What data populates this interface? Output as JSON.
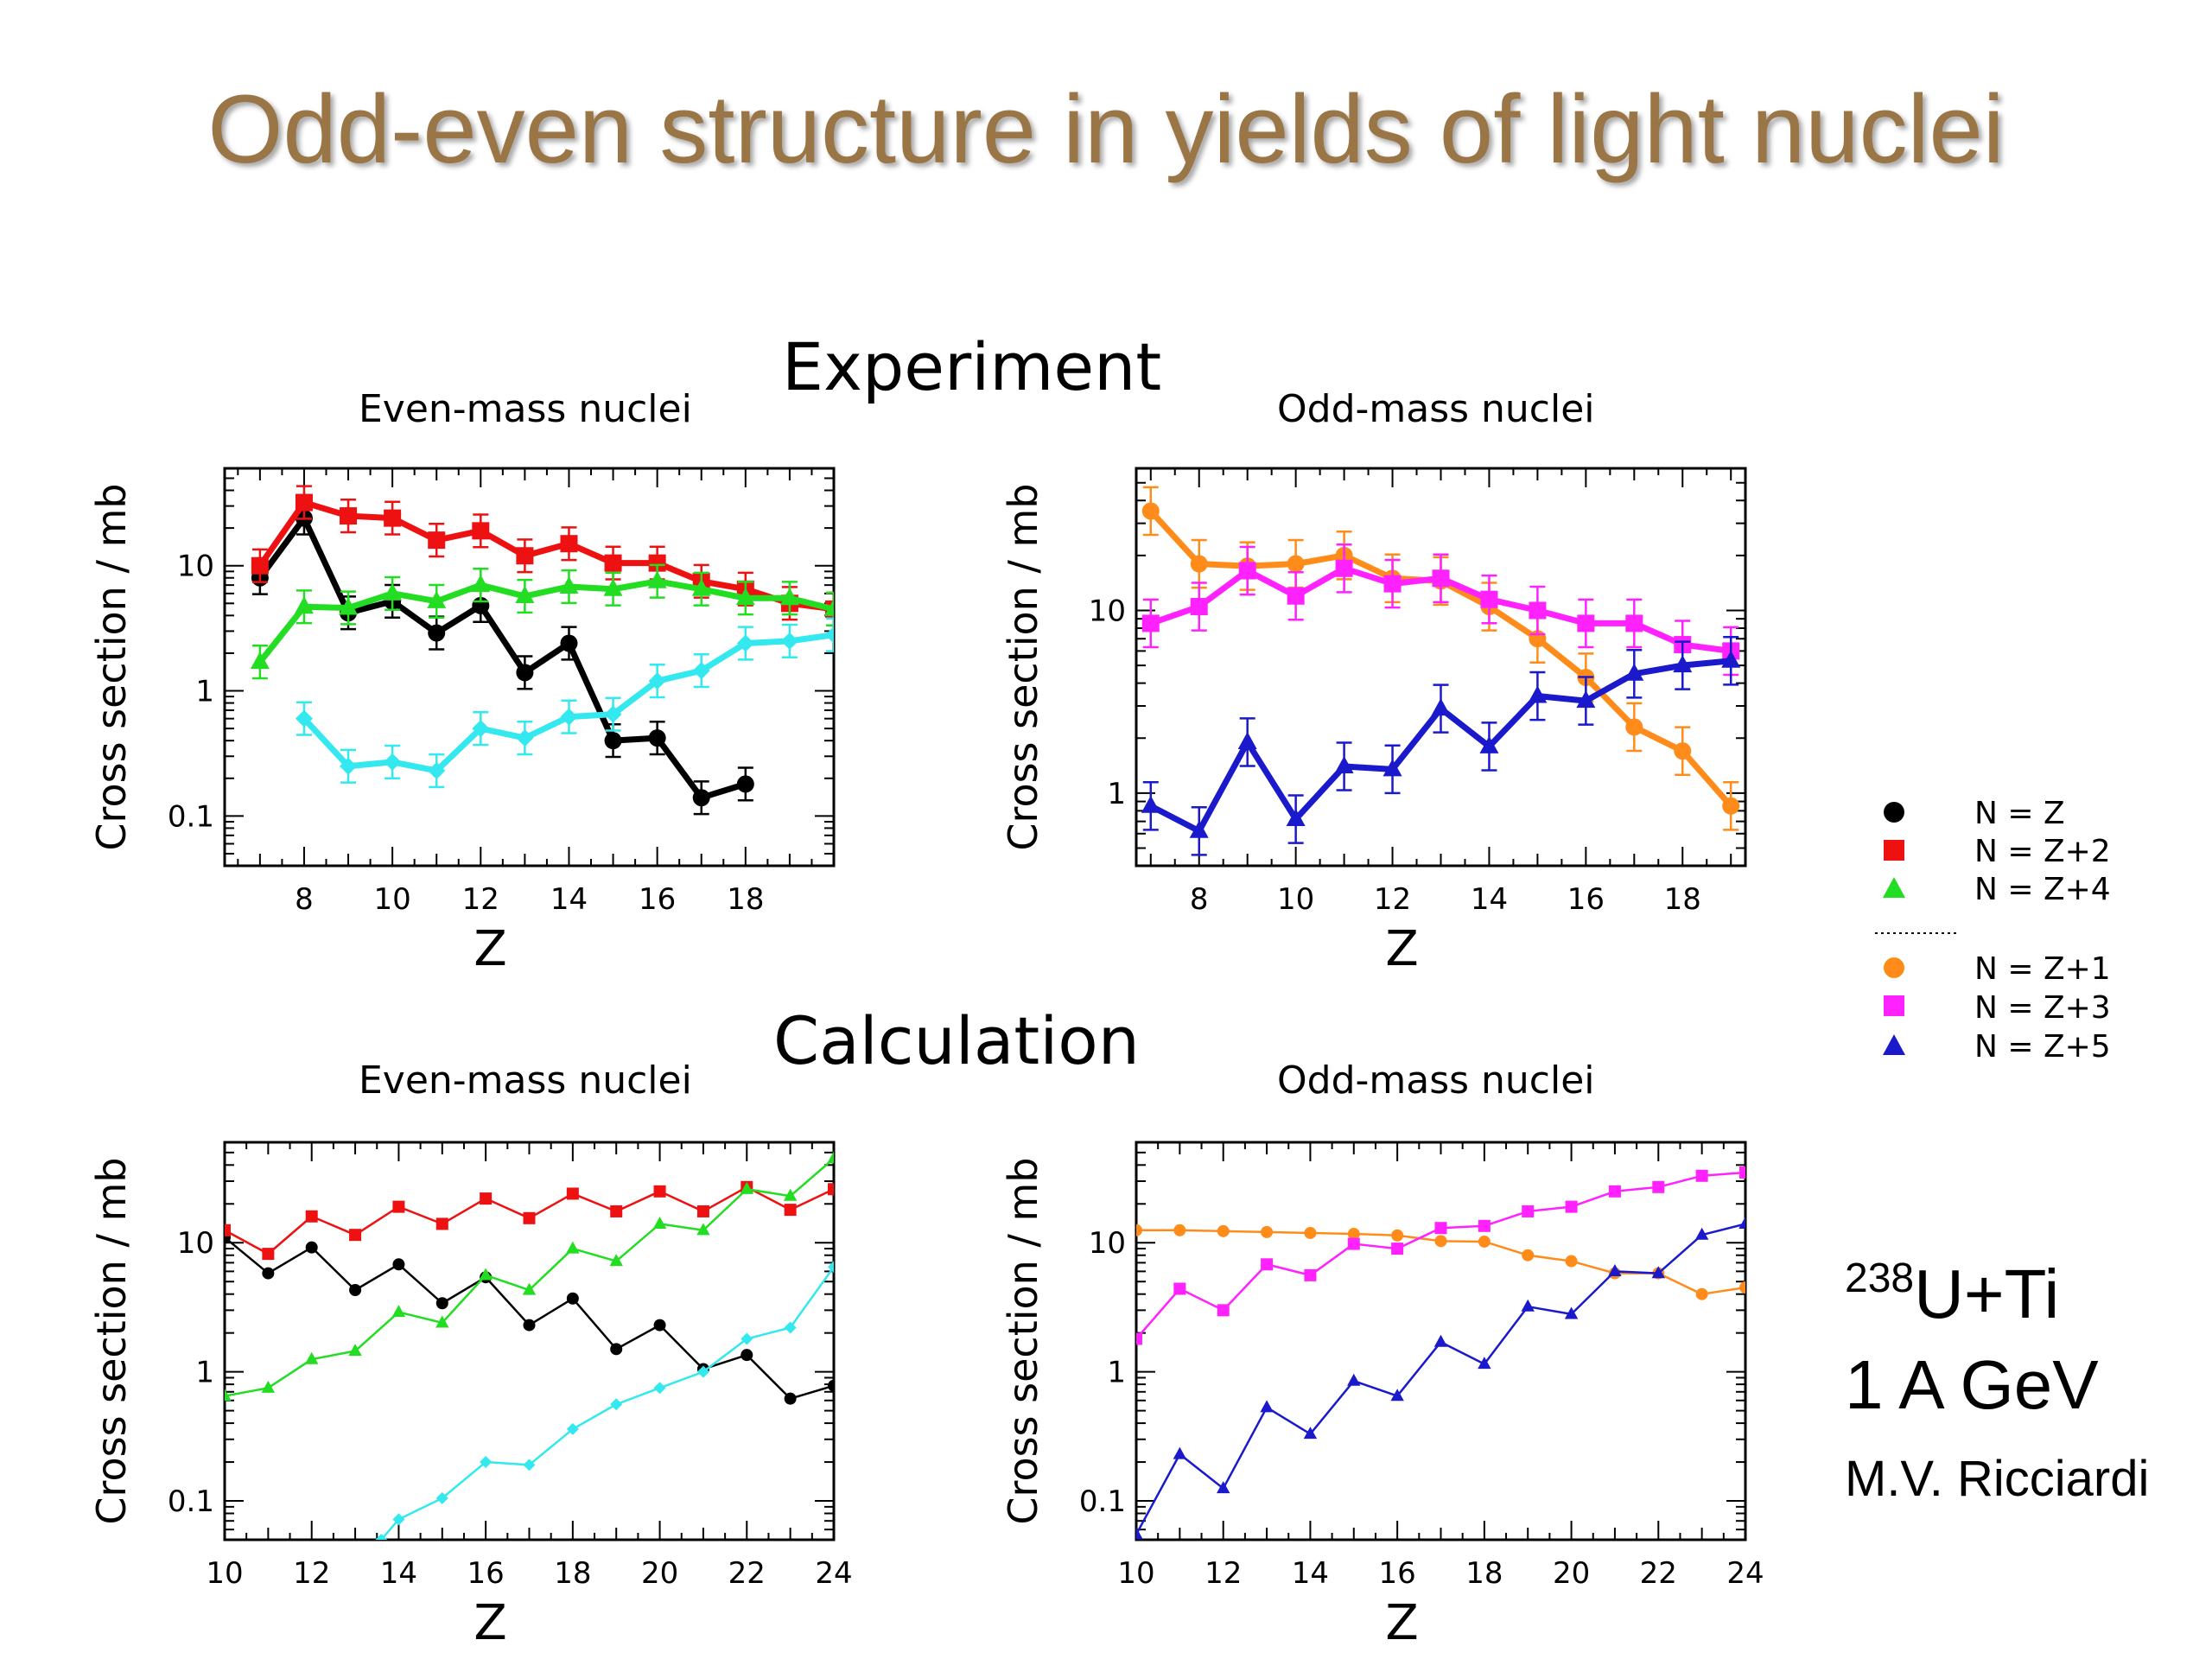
{
  "slide": {
    "title": "Odd-even structure in yields of light nuclei",
    "experiment_label": "Experiment",
    "calculation_label": "Calculation",
    "reaction_mass": "238",
    "reaction_rest": "U+Ti",
    "energy": "1 A GeV",
    "author": "M.V. Ricciardi"
  },
  "legend": {
    "items": [
      {
        "label": "N = Z",
        "color": "#000000",
        "marker": "circle"
      },
      {
        "label": "N = Z+2",
        "color": "#ee1111",
        "marker": "square"
      },
      {
        "label": "N = Z+4",
        "color": "#22dd22",
        "marker": "triangle"
      },
      {
        "label": "N = Z+1",
        "color": "#ff8c1a",
        "marker": "circle"
      },
      {
        "label": "N = Z+3",
        "color": "#ff22ff",
        "marker": "square"
      },
      {
        "label": "N = Z+5",
        "color": "#1a1acc",
        "marker": "triangle"
      }
    ]
  },
  "chart_data": [
    {
      "type": "line",
      "id": "exp-even",
      "title": "Even-mass nuclei",
      "xlabel": "Z",
      "ylabel": "Cross section / mb",
      "xlim": [
        6.2,
        20
      ],
      "ylim": [
        0.04,
        60
      ],
      "yscale": "log",
      "xticks": [
        8,
        10,
        12,
        14,
        16,
        18
      ],
      "yticks": [
        0.1,
        1,
        10
      ],
      "ytick_labels": [
        "0.1",
        "1",
        "10"
      ],
      "error_bars": true,
      "line_width": 7,
      "marker_size": 10,
      "series": [
        {
          "legend": "N = Z",
          "color": "#000000",
          "marker": "circle",
          "x": [
            7,
            8,
            9,
            10,
            11,
            12,
            13,
            14,
            15,
            16,
            17,
            18
          ],
          "y": [
            8,
            24,
            4.2,
            5.2,
            2.9,
            4.8,
            1.4,
            2.4,
            0.4,
            0.42,
            0.14,
            0.18
          ]
        },
        {
          "legend": "N = Z+2",
          "color": "#ee1111",
          "marker": "square",
          "x": [
            7,
            8,
            9,
            10,
            11,
            12,
            13,
            14,
            15,
            16,
            17,
            18,
            19,
            20
          ],
          "y": [
            10,
            32,
            25,
            24,
            16,
            19,
            12,
            15,
            10.5,
            10.5,
            7.5,
            6.5,
            5,
            4.5
          ]
        },
        {
          "legend": "N = Z+4",
          "color": "#22dd22",
          "marker": "triangle",
          "x": [
            7,
            8,
            9,
            10,
            11,
            12,
            13,
            14,
            15,
            16,
            17,
            18,
            19,
            20
          ],
          "y": [
            1.7,
            4.7,
            4.6,
            6,
            5.2,
            7,
            5.7,
            6.8,
            6.5,
            7.5,
            6.5,
            5.5,
            5.5,
            4.5
          ]
        },
        {
          "color": "#33e8ee",
          "marker": "diamond",
          "x": [
            8,
            9,
            10,
            11,
            12,
            13,
            14,
            15,
            16,
            17,
            18,
            19,
            20
          ],
          "y": [
            0.6,
            0.25,
            0.27,
            0.23,
            0.5,
            0.42,
            0.62,
            0.65,
            1.2,
            1.45,
            2.4,
            2.5,
            2.8
          ]
        }
      ]
    },
    {
      "type": "line",
      "id": "exp-odd",
      "title": "Odd-mass nuclei",
      "xlabel": "Z",
      "ylabel": "Cross section / mb",
      "xlim": [
        6.7,
        19.3
      ],
      "ylim": [
        0.4,
        60
      ],
      "yscale": "log",
      "xticks": [
        8,
        10,
        12,
        14,
        16,
        18
      ],
      "yticks": [
        1,
        10
      ],
      "ytick_labels": [
        "1",
        "10"
      ],
      "error_bars": true,
      "line_width": 7,
      "marker_size": 10,
      "series": [
        {
          "legend": "N = Z+1",
          "color": "#ff8c1a",
          "marker": "circle",
          "x": [
            7,
            8,
            9,
            10,
            11,
            12,
            13,
            14,
            15,
            16,
            17,
            18,
            19
          ],
          "y": [
            35,
            18,
            17.5,
            18,
            20,
            15,
            14.5,
            10.5,
            7,
            4.3,
            2.3,
            1.7,
            0.85
          ]
        },
        {
          "legend": "N = Z+3",
          "color": "#ff22ff",
          "marker": "square",
          "x": [
            7,
            8,
            9,
            10,
            11,
            12,
            13,
            14,
            15,
            16,
            17,
            18,
            19
          ],
          "y": [
            8.5,
            10.5,
            16.5,
            12,
            17,
            14,
            15,
            11.5,
            10,
            8.5,
            8.5,
            6.5,
            6
          ]
        },
        {
          "legend": "N = Z+5",
          "color": "#1a1acc",
          "marker": "triangle",
          "x": [
            7,
            8,
            9,
            10,
            11,
            12,
            13,
            14,
            15,
            16,
            17,
            18,
            19
          ],
          "y": [
            0.85,
            0.62,
            1.9,
            0.72,
            1.4,
            1.35,
            2.9,
            1.8,
            3.4,
            3.2,
            4.5,
            5,
            5.3
          ]
        }
      ]
    },
    {
      "type": "line",
      "id": "calc-even",
      "title": "Even-mass nuclei",
      "xlabel": "Z",
      "ylabel": "Cross section / mb",
      "xlim": [
        10,
        24
      ],
      "ylim": [
        0.05,
        60
      ],
      "yscale": "log",
      "xticks": [
        10,
        12,
        14,
        16,
        18,
        20,
        22,
        24
      ],
      "yticks": [
        0.1,
        1,
        10
      ],
      "ytick_labels": [
        "0.1",
        "1",
        "10"
      ],
      "error_bars": false,
      "line_width": 2.5,
      "marker_size": 7,
      "series": [
        {
          "legend": "N = Z",
          "color": "#000000",
          "marker": "circle",
          "x": [
            10,
            11,
            12,
            13,
            14,
            15,
            16,
            17,
            18,
            19,
            20,
            21,
            22,
            23,
            24
          ],
          "y": [
            11,
            5.8,
            9.2,
            4.3,
            6.8,
            3.4,
            5.4,
            2.3,
            3.7,
            1.5,
            2.3,
            1.05,
            1.35,
            0.62,
            0.78
          ]
        },
        {
          "legend": "N = Z+2",
          "color": "#ee1111",
          "marker": "square",
          "x": [
            10,
            11,
            12,
            13,
            14,
            15,
            16,
            17,
            18,
            19,
            20,
            21,
            22,
            23,
            24
          ],
          "y": [
            12.5,
            8.2,
            16,
            11.5,
            19,
            14,
            22,
            15.5,
            24,
            17.5,
            25,
            17.5,
            27,
            18,
            26
          ]
        },
        {
          "legend": "N = Z+4",
          "color": "#22dd22",
          "marker": "triangle",
          "x": [
            10,
            11,
            12,
            13,
            14,
            15,
            16,
            17,
            18,
            19,
            20,
            21,
            22,
            23,
            24
          ],
          "y": [
            0.65,
            0.75,
            1.25,
            1.45,
            2.9,
            2.4,
            5.6,
            4.3,
            9,
            7.2,
            14,
            12.5,
            26,
            23,
            45
          ]
        },
        {
          "color": "#33e8ee",
          "marker": "diamond",
          "x": [
            13.6,
            14,
            15,
            16,
            17,
            18,
            19,
            20,
            21,
            22,
            23,
            24
          ],
          "y": [
            0.05,
            0.072,
            0.105,
            0.2,
            0.19,
            0.36,
            0.56,
            0.75,
            1.0,
            1.8,
            2.2,
            6.5
          ]
        }
      ]
    },
    {
      "type": "line",
      "id": "calc-odd",
      "title": "Odd-mass nuclei",
      "xlabel": "Z",
      "ylabel": "Cross section / mb",
      "xlim": [
        10,
        24
      ],
      "ylim": [
        0.05,
        60
      ],
      "yscale": "log",
      "xticks": [
        10,
        12,
        14,
        16,
        18,
        20,
        22,
        24
      ],
      "yticks": [
        0.1,
        1,
        10
      ],
      "ytick_labels": [
        "0.1",
        "1",
        "10"
      ],
      "error_bars": false,
      "line_width": 2.5,
      "marker_size": 7,
      "series": [
        {
          "legend": "N = Z+1",
          "color": "#ff8c1a",
          "marker": "circle",
          "x": [
            10,
            11,
            12,
            13,
            14,
            15,
            16,
            17,
            18,
            19,
            20,
            21,
            22,
            23,
            24
          ],
          "y": [
            12.5,
            12.5,
            12.3,
            12.1,
            11.9,
            11.7,
            11.4,
            10.3,
            10.2,
            8,
            7.2,
            5.8,
            5.8,
            4,
            4.5
          ]
        },
        {
          "legend": "N = Z+3",
          "color": "#ff22ff",
          "marker": "square",
          "x": [
            10,
            11,
            12,
            13,
            14,
            15,
            16,
            17,
            18,
            19,
            20,
            21,
            22,
            23,
            24
          ],
          "y": [
            1.8,
            4.4,
            3.0,
            6.8,
            5.6,
            9.8,
            9.0,
            13,
            13.5,
            17.5,
            19,
            25,
            27,
            33,
            35
          ]
        },
        {
          "legend": "N = Z+5",
          "color": "#1a1acc",
          "marker": "triangle",
          "x": [
            10,
            11,
            12,
            13,
            14,
            15,
            16,
            17,
            18,
            19,
            20,
            21,
            22,
            23,
            24
          ],
          "y": [
            0.055,
            0.23,
            0.125,
            0.53,
            0.33,
            0.85,
            0.65,
            1.7,
            1.15,
            3.2,
            2.8,
            6,
            5.8,
            11.5,
            14
          ]
        }
      ]
    }
  ]
}
